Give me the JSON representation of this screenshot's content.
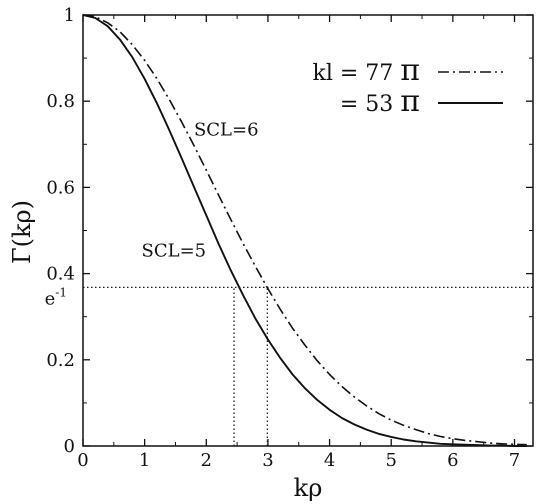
{
  "chart_data": {
    "type": "line",
    "title": "",
    "xlabel": "kρ",
    "ylabel": "Γ(kρ)",
    "xlim": [
      0,
      7.3
    ],
    "ylim": [
      0,
      1
    ],
    "x_ticks": [
      "0",
      "1",
      "2",
      "3",
      "4",
      "5",
      "6",
      "7"
    ],
    "y_ticks": [
      "0",
      "0.2",
      "0.4",
      "0.6",
      "0.8",
      "1"
    ],
    "y_extra_tick": {
      "label": "e-1",
      "value": 0.368
    },
    "grid": false,
    "legend": {
      "placement": "top-right",
      "entries": [
        {
          "text": "kl = 77",
          "symbol": "π",
          "style": "dash-dot"
        },
        {
          "text": "= 53",
          "symbol": "π",
          "style": "solid"
        }
      ]
    },
    "series": [
      {
        "style": "dash-dot",
        "x": [
          0,
          0.2,
          0.4,
          0.6,
          0.8,
          1.0,
          1.2,
          1.4,
          1.6,
          1.8,
          2.0,
          2.2,
          2.4,
          2.6,
          2.8,
          3.0,
          3.2,
          3.4,
          3.6,
          3.8,
          4.0,
          4.2,
          4.4,
          4.6,
          4.8,
          5.0,
          5.2,
          5.4,
          5.6,
          5.8,
          6.0,
          6.2,
          6.4,
          6.6,
          6.8,
          7.0,
          7.2
        ],
        "y": [
          1.0,
          0.996,
          0.982,
          0.961,
          0.931,
          0.895,
          0.852,
          0.804,
          0.752,
          0.697,
          0.64,
          0.582,
          0.525,
          0.469,
          0.416,
          0.365,
          0.317,
          0.273,
          0.234,
          0.198,
          0.166,
          0.138,
          0.114,
          0.093,
          0.075,
          0.06,
          0.048,
          0.038,
          0.029,
          0.022,
          0.017,
          0.013,
          0.01,
          0.007,
          0.005,
          0.004,
          0.003
        ]
      },
      {
        "style": "solid",
        "x": [
          0,
          0.2,
          0.4,
          0.6,
          0.8,
          1.0,
          1.2,
          1.4,
          1.6,
          1.8,
          2.0,
          2.2,
          2.4,
          2.6,
          2.8,
          3.0,
          3.2,
          3.4,
          3.6,
          3.8,
          4.0,
          4.2,
          4.4,
          4.6,
          4.8,
          5.0,
          5.2,
          5.4,
          5.6,
          5.8,
          6.0,
          6.2,
          6.4,
          6.6,
          6.8,
          7.0,
          7.2
        ],
        "y": [
          1.0,
          0.993,
          0.974,
          0.943,
          0.902,
          0.852,
          0.795,
          0.733,
          0.668,
          0.601,
          0.535,
          0.469,
          0.407,
          0.349,
          0.295,
          0.247,
          0.204,
          0.166,
          0.134,
          0.107,
          0.084,
          0.065,
          0.05,
          0.038,
          0.028,
          0.021,
          0.015,
          0.011,
          0.008,
          0.005,
          0.004,
          0.003,
          0.002,
          0.001,
          0.001,
          0.0,
          0.0
        ]
      }
    ],
    "reference_lines": [
      {
        "orientation": "horizontal",
        "y": 0.368,
        "style": "dotted"
      },
      {
        "orientation": "vertical",
        "x": 2.45,
        "y_end": 0.368,
        "style": "dotted"
      },
      {
        "orientation": "vertical",
        "x": 2.99,
        "y_end": 0.368,
        "style": "dotted"
      }
    ],
    "annotations": [
      {
        "text": "SCL=6",
        "x": 1.8,
        "y": 0.72
      },
      {
        "text": "SCL=5",
        "x": 0.95,
        "y": 0.44
      }
    ]
  }
}
